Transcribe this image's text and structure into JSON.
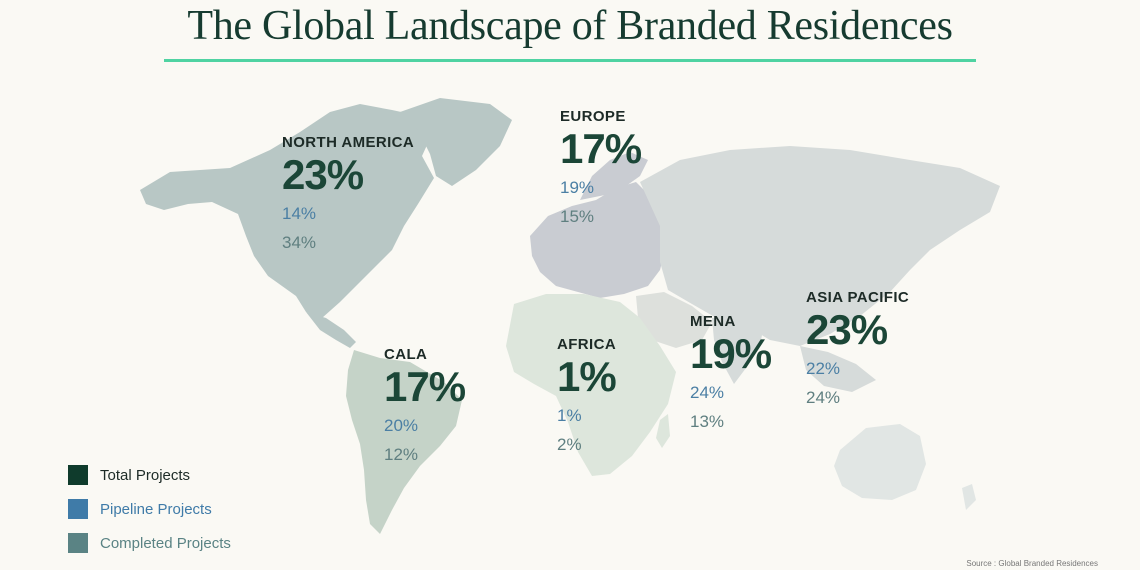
{
  "title": "The Global Landscape of Branded Residences",
  "colors": {
    "accent_rule": "#4fd3a2",
    "total": "#1b4637",
    "pipeline": "#4b7fa4",
    "completed": "#5f7f80"
  },
  "regions": [
    {
      "name": "NORTH AMERICA",
      "total": "23%",
      "pipeline": "14%",
      "completed": "34%"
    },
    {
      "name": "EUROPE",
      "total": "17%",
      "pipeline": "19%",
      "completed": "15%"
    },
    {
      "name": "CALA",
      "total": "17%",
      "pipeline": "20%",
      "completed": "12%"
    },
    {
      "name": "AFRICA",
      "total": "1%",
      "pipeline": "1%",
      "completed": "2%"
    },
    {
      "name": "MENA",
      "total": "19%",
      "pipeline": "24%",
      "completed": "13%"
    },
    {
      "name": "ASIA PACIFIC",
      "total": "23%",
      "pipeline": "22%",
      "completed": "24%"
    }
  ],
  "legend": [
    {
      "label": "Total Projects",
      "color": "#0f3b2c"
    },
    {
      "label": "Pipeline Projects",
      "color": "#3f7ba8"
    },
    {
      "label": "Completed Projects",
      "color": "#5a8384"
    }
  ],
  "source": "Source : Global Branded Residences"
}
